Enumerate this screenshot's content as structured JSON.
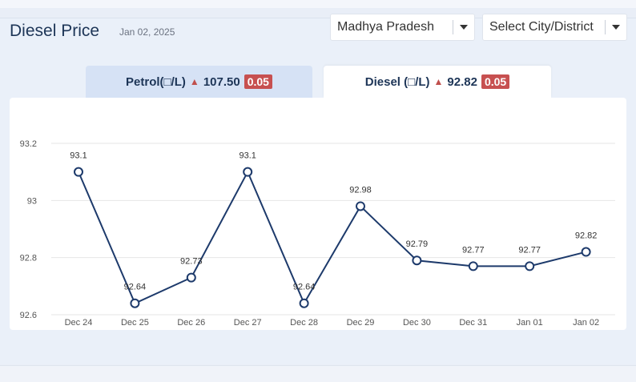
{
  "header": {
    "title": "Diesel Price",
    "date": "Jan 02, 2025",
    "state_select": "Madhya Pradesh",
    "city_select": "Select City/District"
  },
  "tabs": {
    "petrol": {
      "label": "Petrol(□/L)",
      "value": "107.50",
      "change": "0.05"
    },
    "diesel": {
      "label": "Diesel (□/L)",
      "value": "92.82",
      "change": "0.05"
    }
  },
  "colors": {
    "line": "#1d3a6b",
    "badge": "#c75050",
    "up_arrow": "#c0504d"
  },
  "chart_data": {
    "type": "line",
    "categories": [
      "Dec 24",
      "Dec 25",
      "Dec 26",
      "Dec 27",
      "Dec 28",
      "Dec 29",
      "Dec 30",
      "Dec 31",
      "Jan 01",
      "Jan 02"
    ],
    "values": [
      93.1,
      92.64,
      92.73,
      93.1,
      92.64,
      92.98,
      92.79,
      92.77,
      92.77,
      92.82
    ],
    "data_labels": [
      "93.1",
      "92.64",
      "92.73",
      "93.1",
      "92.64",
      "92.98",
      "92.79",
      "92.77",
      "92.77",
      "92.82"
    ],
    "yticks": [
      "92.6",
      "92.8",
      "93",
      "93.2"
    ],
    "ytick_values": [
      92.6,
      92.8,
      93.0,
      93.2
    ],
    "ylim": [
      92.6,
      93.2
    ],
    "grid": true
  }
}
